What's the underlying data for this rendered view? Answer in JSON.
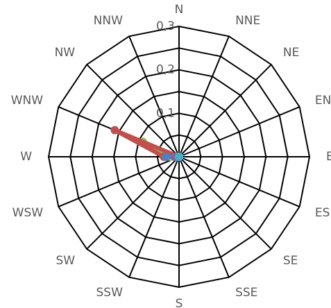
{
  "chart_data": {
    "type": "radar",
    "categories": [
      "N",
      "NNE",
      "NE",
      "ENE",
      "E",
      "ESE",
      "SE",
      "SSE",
      "S",
      "SSW",
      "SW",
      "WSW",
      "W",
      "WNW",
      "NW",
      "NNW"
    ],
    "rlim": [
      0,
      0.3
    ],
    "ticks": [
      {
        "value": 0,
        "label": "0"
      },
      {
        "value": 0.1,
        "label": "0,1"
      },
      {
        "value": 0.2,
        "label": "0,2"
      },
      {
        "value": 0.3,
        "label": "0,3"
      }
    ],
    "rings": [
      0,
      0.05,
      0.1,
      0.15,
      0.2,
      0.25,
      0.3
    ],
    "series": [
      {
        "color": "#9bbb59",
        "values": [
          0,
          0,
          0,
          0,
          0,
          0,
          0,
          0,
          0,
          0,
          0,
          0,
          0.02,
          0.09,
          0,
          0
        ]
      },
      {
        "color": "#c0504d",
        "values": [
          0,
          0,
          0,
          0,
          0,
          0,
          0,
          0,
          0,
          0,
          0,
          0,
          0.035,
          0.16,
          0,
          0
        ]
      },
      {
        "color": "#4f81bd",
        "values": [
          0,
          0,
          0,
          0,
          0,
          0,
          0,
          0,
          0,
          0,
          0,
          0,
          0.03,
          0,
          0,
          0
        ]
      },
      {
        "color": "#8064a2",
        "values": [
          0,
          0,
          0,
          0,
          0,
          0,
          0,
          0,
          0,
          0,
          0,
          0,
          0.01,
          0,
          0,
          0
        ]
      },
      {
        "color": "#4bacc6",
        "values": [
          0,
          0,
          0,
          0,
          0,
          0,
          0,
          0,
          0,
          0,
          0,
          0,
          0,
          0,
          0,
          0
        ]
      }
    ]
  }
}
